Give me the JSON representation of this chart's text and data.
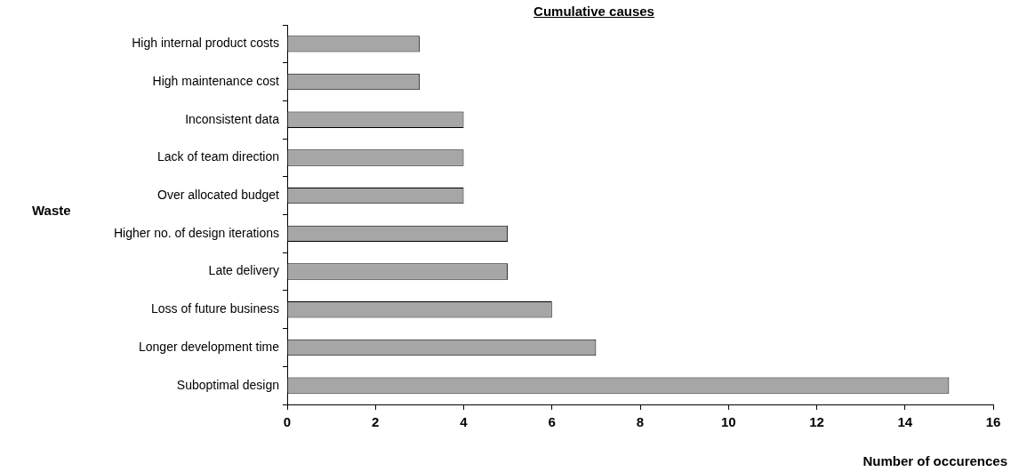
{
  "chart_data": {
    "type": "bar",
    "orientation": "horizontal",
    "title": "Cumulative causes",
    "xlabel": "Number of occurences",
    "ylabel": "Waste",
    "categories": [
      "High internal product costs",
      "High maintenance cost",
      "Inconsistent data",
      "Lack of team direction",
      "Over allocated budget",
      "Higher no. of design iterations",
      "Late delivery",
      "Loss of future business",
      "Longer development time",
      "Suboptimal design"
    ],
    "values": [
      3,
      3,
      4,
      4,
      4,
      5,
      5,
      6,
      7,
      15
    ],
    "color": "#a6a6a6",
    "xlim": [
      0,
      16
    ],
    "xticks": [
      0,
      2,
      4,
      6,
      8,
      10,
      12,
      14,
      16
    ],
    "grid": false,
    "legend": false
  }
}
